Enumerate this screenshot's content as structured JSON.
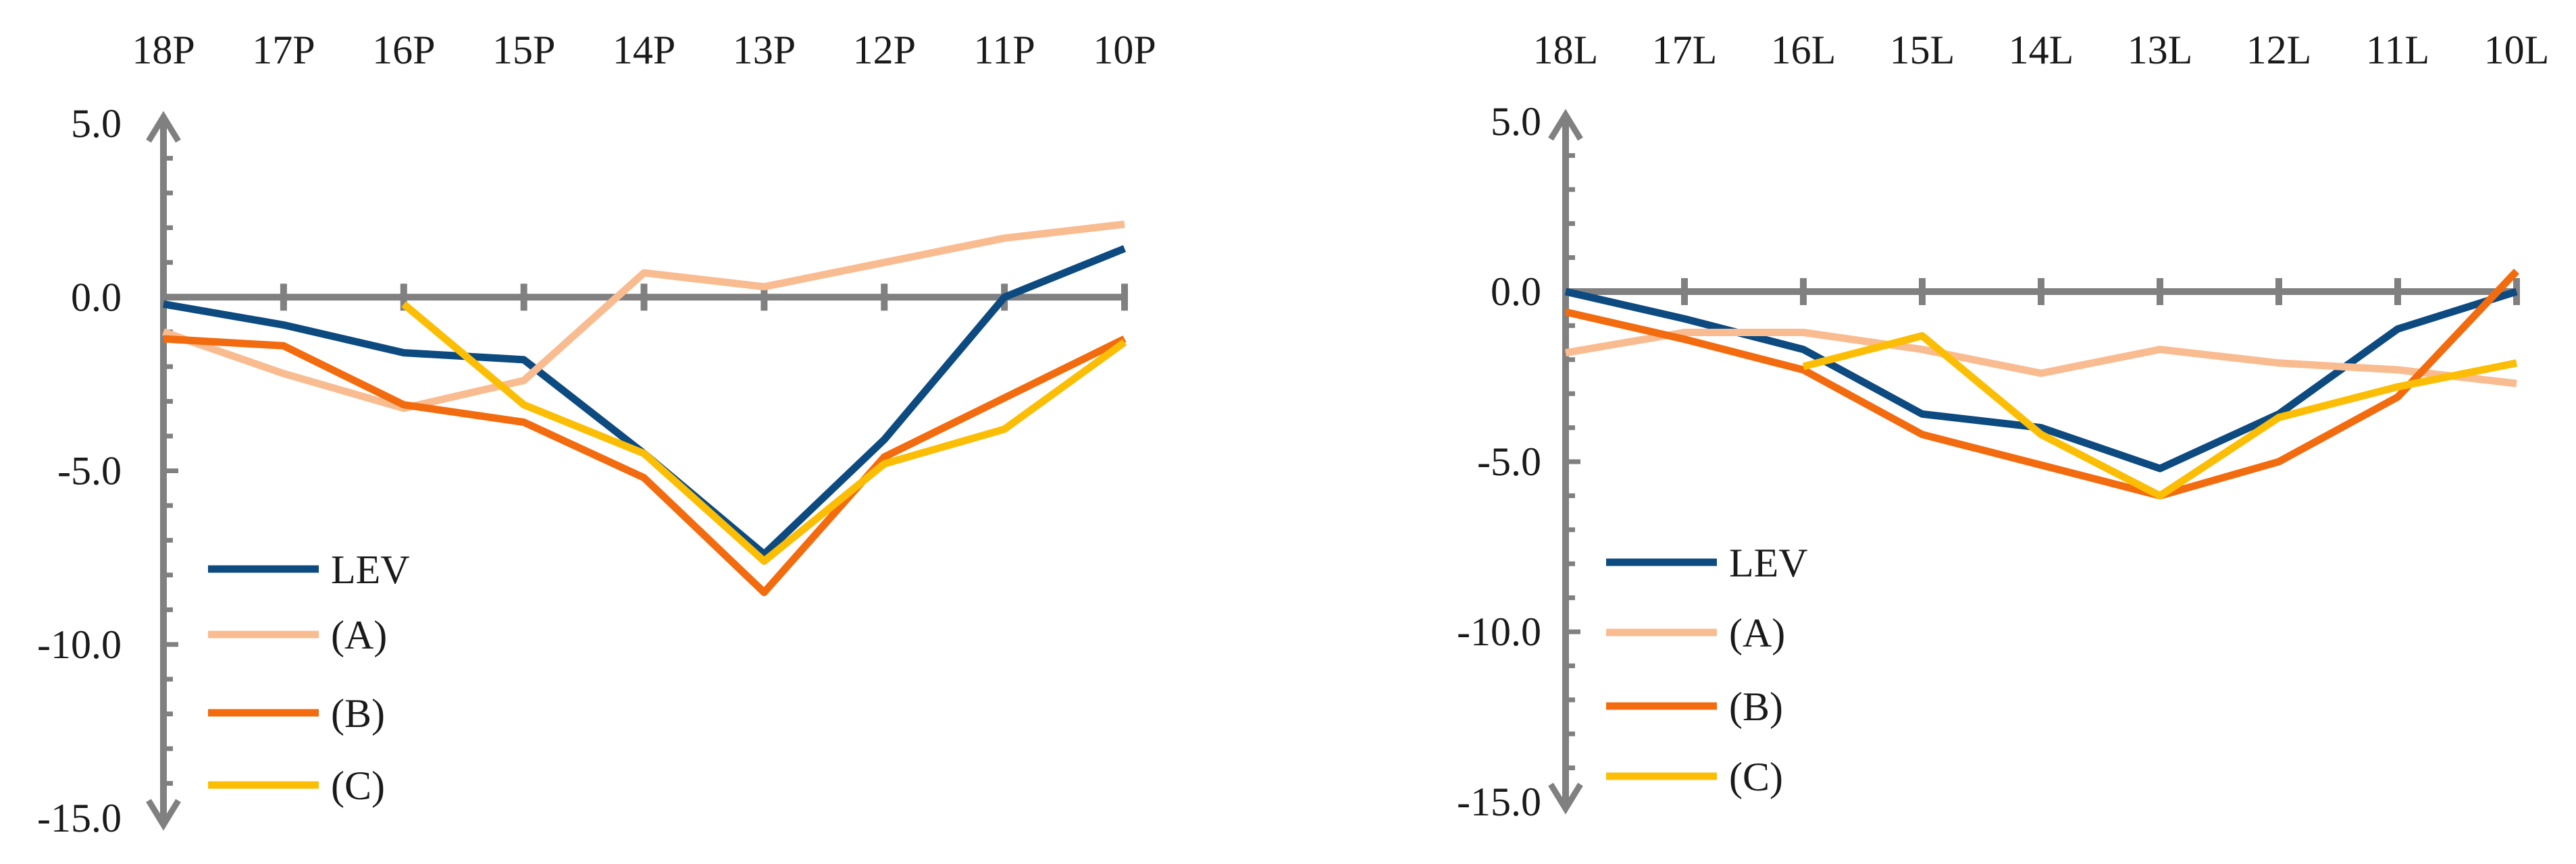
{
  "chart_data": [
    {
      "type": "line",
      "title": "",
      "xlabel": "",
      "ylabel": "",
      "categories": [
        "18P",
        "17P",
        "16P",
        "15P",
        "14P",
        "13P",
        "12P",
        "11P",
        "10P"
      ],
      "ylim": [
        -15.0,
        5.0
      ],
      "yticks": [
        "5.0",
        "0.0",
        "-5.0",
        "-10.0",
        "-15.0"
      ],
      "legend_position": "bottom-left",
      "series": [
        {
          "name": "LEV",
          "color": "#0d4a80",
          "values": [
            -0.2,
            -0.8,
            -1.6,
            -1.8,
            -4.5,
            -7.4,
            -4.1,
            0.0,
            1.4
          ]
        },
        {
          "name": "(A)",
          "color": "#f9bc90",
          "values": [
            -1.0,
            -2.2,
            -3.2,
            -2.4,
            0.7,
            0.3,
            1.0,
            1.7,
            2.1
          ]
        },
        {
          "name": "(B)",
          "color": "#f36b0f",
          "values": [
            -1.2,
            -1.4,
            -3.1,
            -3.6,
            -5.2,
            -8.5,
            -4.6,
            -2.9,
            -1.2
          ]
        },
        {
          "name": "(C)",
          "color": "#fcbe05",
          "values": [
            null,
            null,
            -0.2,
            -3.1,
            -4.5,
            -7.6,
            -4.8,
            -3.8,
            -1.3
          ]
        }
      ]
    },
    {
      "type": "line",
      "title": "",
      "xlabel": "",
      "ylabel": "",
      "categories": [
        "18L",
        "17L",
        "16L",
        "15L",
        "14L",
        "13L",
        "12L",
        "11L",
        "10L"
      ],
      "ylim": [
        -15.0,
        5.0
      ],
      "yticks": [
        "5.0",
        "0.0",
        "-5.0",
        "-10.0",
        "-15.0"
      ],
      "legend_position": "bottom-left",
      "series": [
        {
          "name": "LEV",
          "color": "#0d4a80",
          "values": [
            0.0,
            -0.8,
            -1.7,
            -3.6,
            -4.0,
            -5.2,
            -3.6,
            -1.1,
            0.0
          ]
        },
        {
          "name": "(A)",
          "color": "#f9bc90",
          "values": [
            -1.8,
            -1.2,
            -1.2,
            -1.7,
            -2.4,
            -1.7,
            -2.1,
            -2.3,
            -2.7
          ]
        },
        {
          "name": "(B)",
          "color": "#f36b0f",
          "values": [
            -0.6,
            -1.4,
            -2.3,
            -4.2,
            -5.1,
            -6.0,
            -5.0,
            -3.1,
            0.6
          ]
        },
        {
          "name": "(C)",
          "color": "#fcbe05",
          "values": [
            null,
            null,
            -2.2,
            -1.3,
            -4.2,
            -6.0,
            -3.7,
            -2.8,
            -2.1
          ]
        }
      ]
    }
  ]
}
